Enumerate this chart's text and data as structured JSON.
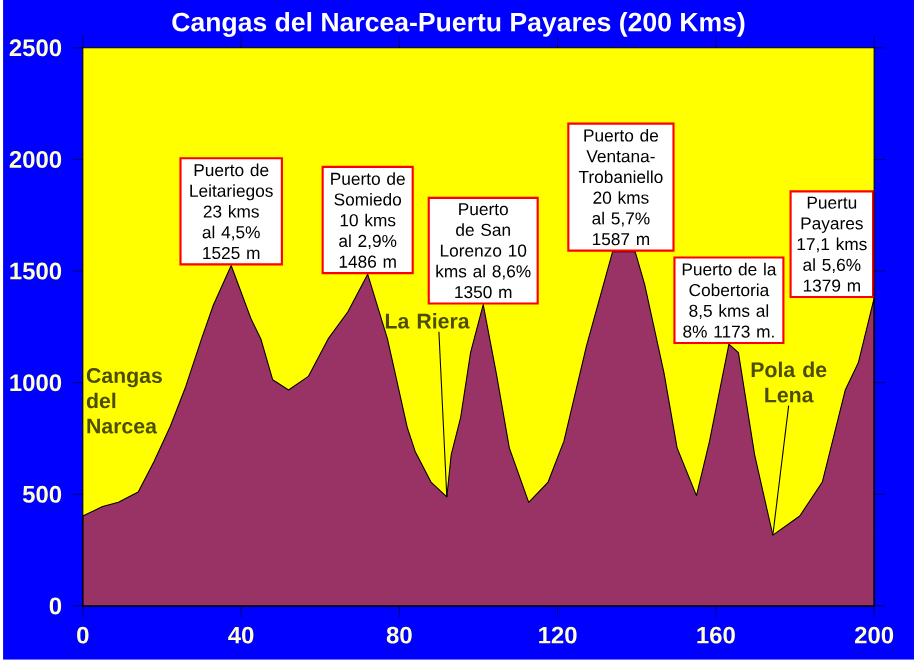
{
  "chart_data": {
    "type": "area",
    "title": "Cangas del Narcea-Puertu Payares (200 Kms)",
    "x": [
      0,
      5,
      9,
      14,
      18,
      22,
      26,
      30,
      33,
      37.5,
      42.5,
      45,
      48,
      52,
      57,
      62,
      67,
      72,
      77,
      82,
      84,
      88,
      92,
      93.1,
      95.5,
      98,
      101.2,
      104.5,
      107.8,
      112.7,
      117.6,
      121.6,
      127.3,
      133.9,
      139.6,
      142,
      146.9,
      150.2,
      155.1,
      158.4,
      163.3,
      165.7,
      169.8,
      174.4,
      181.2,
      186.9,
      192.7,
      196,
      200
    ],
    "series": [
      {
        "color": "#993366",
        "values": [
          403,
          445,
          464,
          510,
          647,
          800,
          982,
          1196,
          1348,
          1525,
          1287,
          1196,
          1013,
          967,
          1028,
          1196,
          1318,
          1486,
          1196,
          800,
          692,
          555,
          488,
          677,
          845,
          1135,
          1350,
          1043,
          708,
          464,
          555,
          738,
          1165,
          1587,
          1587,
          1440,
          1043,
          708,
          494,
          738,
          1173,
          1135,
          677,
          317,
          403,
          555,
          967,
          1089,
          1379
        ]
      }
    ],
    "xlim": [
      0,
      200
    ],
    "xticks": [
      0,
      40,
      80,
      120,
      160,
      200
    ],
    "ylim": [
      0,
      2500
    ],
    "yticks": [
      0,
      500,
      1000,
      1500,
      2000,
      2500
    ],
    "annotations": [
      {
        "text": "Puerto de Leitariegos 23 kms al 4,5% 1525 m",
        "x": 37.5,
        "y": 1525
      },
      {
        "text": "Puerto de Somiedo 10 kms al 2,9% 1486 m",
        "x": 72,
        "y": 1486
      },
      {
        "text": "Puerto de San Lorenzo 10 kms al 8,6% 1350 m",
        "x": 101.2,
        "y": 1350
      },
      {
        "text": "Puerto de Ventana-Trobaniello 20 kms al 5,7% 1587 m",
        "x": 136,
        "y": 1587
      },
      {
        "text": "Puerto de la Cobertoria 8,5 kms al 8% 1173 m.",
        "x": 163.3,
        "y": 1173
      },
      {
        "text": "Puertu Payares 17,1 kms al 5,6% 1379 m",
        "x": 200,
        "y": 1379
      },
      {
        "text": "La Riera",
        "x": 92,
        "y": 488
      },
      {
        "text": "Pola de Lena",
        "x": 174.4,
        "y": 317
      },
      "Cangas del Narcea"
    ]
  }
}
